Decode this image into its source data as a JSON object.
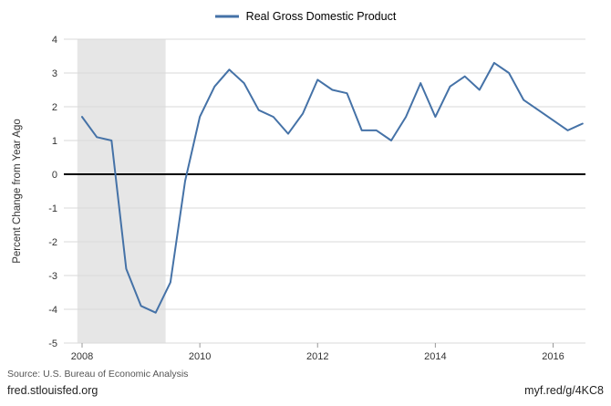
{
  "legend": {
    "label": "Real Gross Domestic Product"
  },
  "footer": {
    "source": "Source: U.S. Bureau of Economic Analysis",
    "site": "fred.stlouisfed.org",
    "short_url": "myf.red/g/4KC8"
  },
  "chart_data": {
    "type": "line",
    "title": "Real Gross Domestic Product",
    "xlabel": "",
    "ylabel": "Percent Change from Year Ago",
    "ylim": [
      -5,
      4
    ],
    "yticks": [
      4,
      3,
      2,
      1,
      0,
      -1,
      -2,
      -3,
      -4,
      -5
    ],
    "xticks": [
      2008,
      2010,
      2012,
      2014,
      2016
    ],
    "xlim": [
      2007.69,
      2016.55
    ],
    "grid": "horizontal",
    "legend_position": "top-center",
    "zero_line": true,
    "recession_bands": [
      {
        "start": 2007.92,
        "end": 2009.42
      }
    ],
    "series": [
      {
        "name": "Real Gross Domestic Product",
        "frequency": "quarterly",
        "x_start": 2008.0,
        "x_step": 0.25,
        "units": "Percent Change from Year Ago",
        "values": [
          1.7,
          1.1,
          1.0,
          -2.8,
          -3.9,
          -4.1,
          -3.2,
          -0.2,
          1.7,
          2.6,
          3.1,
          2.7,
          1.9,
          1.7,
          1.2,
          1.8,
          2.8,
          2.5,
          2.4,
          1.3,
          1.3,
          1.0,
          1.7,
          2.7,
          1.7,
          2.6,
          2.9,
          2.5,
          3.3,
          3.0,
          2.2,
          1.9,
          1.6,
          1.3,
          1.5
        ],
        "color": "#4572a7"
      }
    ],
    "colors": {
      "line": "#4572a7",
      "recession": "#e6e6e6",
      "grid": "#d9d9d9",
      "zero": "#000000",
      "tick_text": "#333333"
    }
  }
}
